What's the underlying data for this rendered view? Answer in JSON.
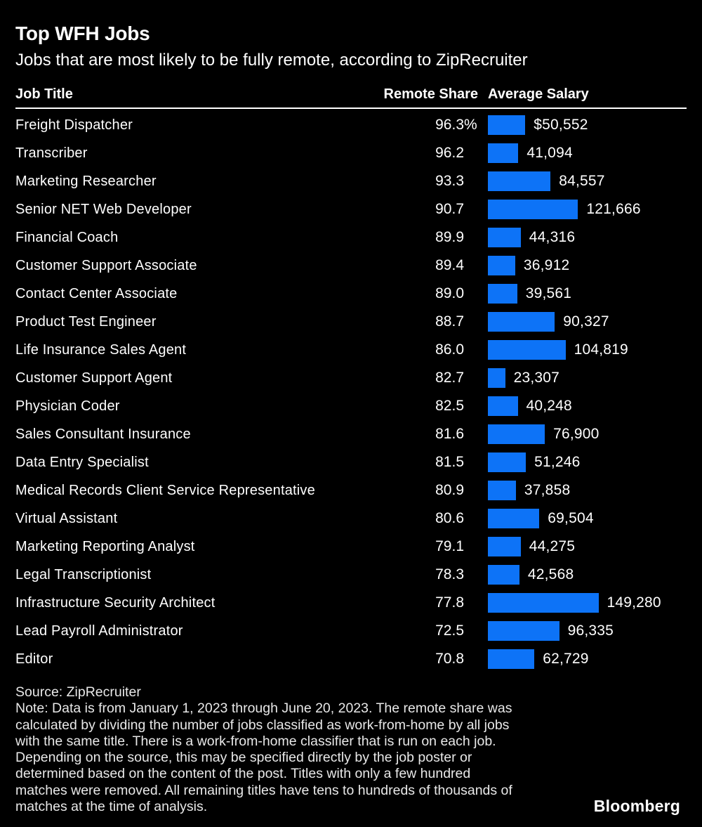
{
  "header": {
    "title": "Top WFH Jobs",
    "subtitle": "Jobs that are most likely to be fully remote, according to ZipRecruiter"
  },
  "columns": {
    "job": "Job Title",
    "share": "Remote Share",
    "salary": "Average Salary"
  },
  "chart_data": {
    "type": "bar",
    "orientation": "horizontal",
    "title": "Top WFH Jobs",
    "subtitle": "Jobs that are most likely to be fully remote, according to ZipRecruiter",
    "categories": [
      "Freight Dispatcher",
      "Transcriber",
      "Marketing Researcher",
      "Senior NET Web Developer",
      "Financial Coach",
      "Customer Support Associate",
      "Contact Center Associate",
      "Product Test Engineer",
      "Life Insurance Sales Agent",
      "Customer Support Agent",
      "Physician Coder",
      "Sales Consultant Insurance",
      "Data Entry Specialist",
      "Medical Records Client Service Representative",
      "Virtual Assistant",
      "Marketing Reporting Analyst",
      "Legal Transcriptionist",
      "Infrastructure Security Architect",
      "Lead Payroll Administrator",
      "Editor"
    ],
    "series": [
      {
        "name": "Remote Share",
        "unit": "%",
        "values": [
          96.3,
          96.2,
          93.3,
          90.7,
          89.9,
          89.4,
          89.0,
          88.7,
          86.0,
          82.7,
          82.5,
          81.6,
          81.5,
          80.9,
          80.6,
          79.1,
          78.3,
          77.8,
          72.5,
          70.8
        ]
      },
      {
        "name": "Average Salary",
        "unit": "USD",
        "values": [
          50552,
          41094,
          84557,
          121666,
          44316,
          36912,
          39561,
          90327,
          104819,
          23307,
          40248,
          76900,
          51246,
          37858,
          69504,
          44275,
          42568,
          149280,
          96335,
          62729
        ]
      }
    ],
    "value_axis_max": 149280,
    "legend_position": "none",
    "grid": false,
    "bar_color": "#0d73f7"
  },
  "rows": [
    {
      "title": "Freight Dispatcher",
      "share": "96.3",
      "share_suffix": "%",
      "salary": 50552,
      "salary_label": "$50,552"
    },
    {
      "title": "Transcriber",
      "share": "96.2",
      "share_suffix": "",
      "salary": 41094,
      "salary_label": "41,094"
    },
    {
      "title": "Marketing Researcher",
      "share": "93.3",
      "share_suffix": "",
      "salary": 84557,
      "salary_label": "84,557"
    },
    {
      "title": "Senior NET Web Developer",
      "share": "90.7",
      "share_suffix": "",
      "salary": 121666,
      "salary_label": "121,666"
    },
    {
      "title": "Financial Coach",
      "share": "89.9",
      "share_suffix": "",
      "salary": 44316,
      "salary_label": "44,316"
    },
    {
      "title": "Customer Support Associate",
      "share": "89.4",
      "share_suffix": "",
      "salary": 36912,
      "salary_label": "36,912"
    },
    {
      "title": "Contact Center Associate",
      "share": "89.0",
      "share_suffix": "",
      "salary": 39561,
      "salary_label": "39,561"
    },
    {
      "title": "Product Test Engineer",
      "share": "88.7",
      "share_suffix": "",
      "salary": 90327,
      "salary_label": "90,327"
    },
    {
      "title": "Life Insurance Sales Agent",
      "share": "86.0",
      "share_suffix": "",
      "salary": 104819,
      "salary_label": "104,819"
    },
    {
      "title": "Customer Support Agent",
      "share": "82.7",
      "share_suffix": "",
      "salary": 23307,
      "salary_label": "23,307"
    },
    {
      "title": "Physician Coder",
      "share": "82.5",
      "share_suffix": "",
      "salary": 40248,
      "salary_label": "40,248"
    },
    {
      "title": "Sales Consultant Insurance",
      "share": "81.6",
      "share_suffix": "",
      "salary": 76900,
      "salary_label": "76,900"
    },
    {
      "title": "Data Entry Specialist",
      "share": "81.5",
      "share_suffix": "",
      "salary": 51246,
      "salary_label": "51,246"
    },
    {
      "title": "Medical Records Client Service Representative",
      "share": "80.9",
      "share_suffix": "",
      "salary": 37858,
      "salary_label": "37,858"
    },
    {
      "title": "Virtual Assistant",
      "share": "80.6",
      "share_suffix": "",
      "salary": 69504,
      "salary_label": "69,504"
    },
    {
      "title": "Marketing Reporting Analyst",
      "share": "79.1",
      "share_suffix": "",
      "salary": 44275,
      "salary_label": "44,275"
    },
    {
      "title": "Legal Transcriptionist",
      "share": "78.3",
      "share_suffix": "",
      "salary": 42568,
      "salary_label": "42,568"
    },
    {
      "title": "Infrastructure Security Architect",
      "share": "77.8",
      "share_suffix": "",
      "salary": 149280,
      "salary_label": "149,280"
    },
    {
      "title": "Lead Payroll Administrator",
      "share": "72.5",
      "share_suffix": "",
      "salary": 96335,
      "salary_label": "96,335"
    },
    {
      "title": "Editor",
      "share": "70.8",
      "share_suffix": "",
      "salary": 62729,
      "salary_label": "62,729"
    }
  ],
  "footer": {
    "source": "Source: ZipRecruiter",
    "note_lines": [
      "Note: Data is from January 1, 2023 through June 20, 2023. The remote share was",
      "calculated by dividing the number of jobs classified as work-from-home by all jobs",
      "with the same title. There is a work-from-home classifier that is run on each job.",
      "Depending on the source, this may be specified directly by the job poster or",
      "determined based on the content of the post. Titles with only a few hundred",
      "matches were removed. All remaining titles have tens to hundreds of thousands of",
      "matches at the time of analysis."
    ],
    "logo": "Bloomberg"
  },
  "colors": {
    "background": "#000000",
    "bar": "#0d73f7",
    "text": "#ffffff",
    "muted": "#e8e8e8",
    "rule": "#ffffff"
  }
}
